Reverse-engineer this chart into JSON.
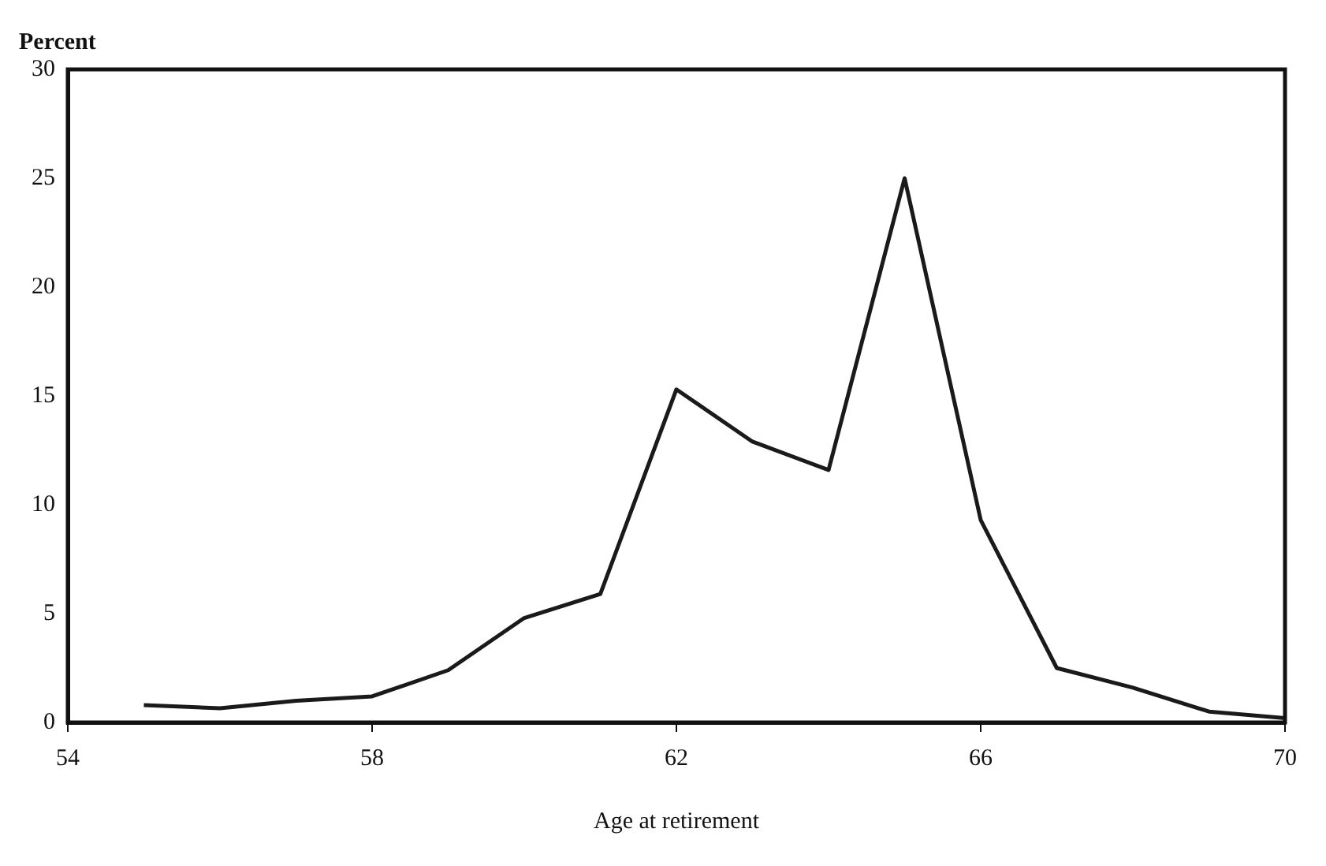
{
  "chart_data": {
    "type": "line",
    "ylabel": "Percent",
    "xlabel": "Age at retirement",
    "x": [
      55,
      56,
      57,
      58,
      59,
      60,
      61,
      62,
      63,
      64,
      65,
      66,
      67,
      68,
      69,
      70
    ],
    "series": [
      {
        "color": "#1a1a1a",
        "values": [
          0.8,
          0.65,
          1.0,
          1.2,
          2.4,
          4.8,
          5.9,
          15.3,
          12.9,
          11.6,
          25.0,
          9.3,
          2.5,
          1.6,
          0.5,
          0.2
        ]
      }
    ],
    "xlim": [
      54,
      70
    ],
    "xticks": [
      54,
      58,
      62,
      66,
      70
    ],
    "ylim": [
      0,
      30
    ],
    "yticks": [
      0,
      5,
      10,
      15,
      20,
      25,
      30
    ],
    "grid": false,
    "legend": false,
    "marker": "none",
    "line_style": "solid"
  }
}
